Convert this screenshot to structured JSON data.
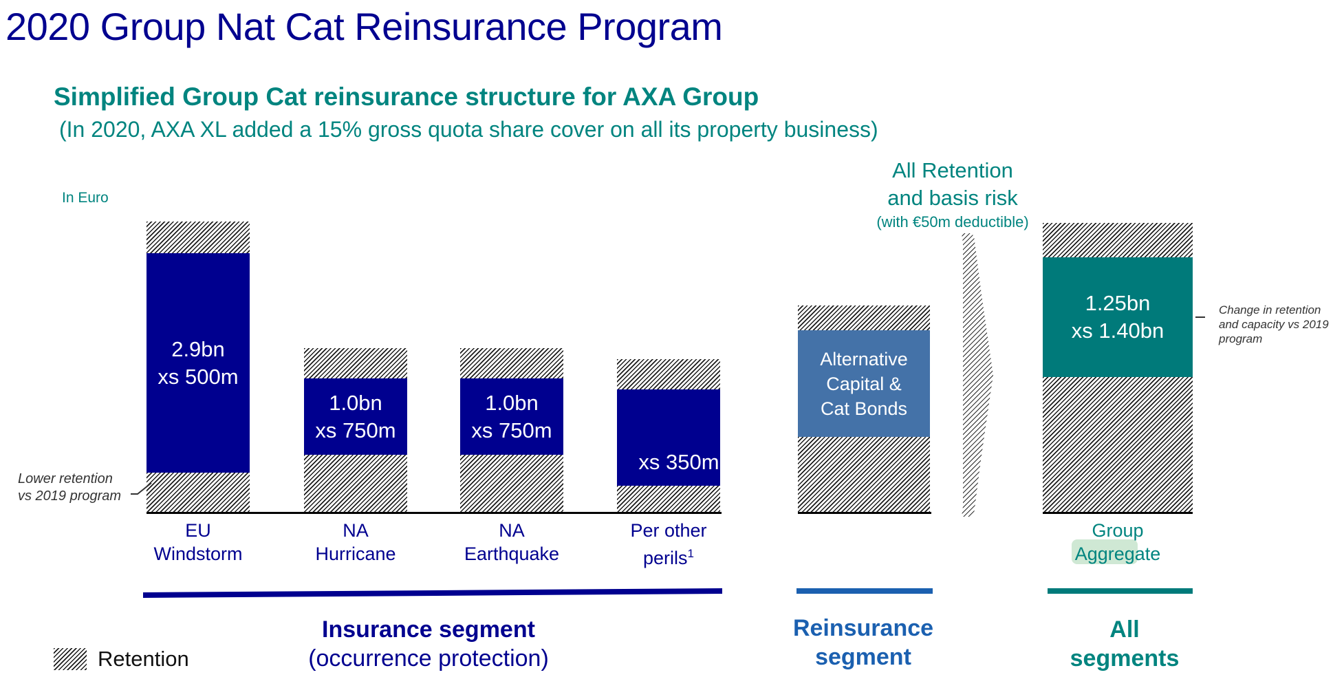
{
  "title": "2020 Group Nat Cat Reinsurance Program",
  "subtitle": "Simplified Group Cat reinsurance structure for AXA Group",
  "subnote": "(In 2020, AXA XL added a 15% gross quota share cover on all its property business)",
  "unit": "In Euro",
  "colors": {
    "insurance": "#00008f",
    "reinsurance": "#4472a8",
    "all_segments": "#007a7a",
    "heading_teal": "#00847f"
  },
  "bars": [
    {
      "id": "eu-windstorm",
      "cover_line1": "2.9bn",
      "cover_line2": "xs 500m",
      "category_line1": "EU",
      "category_line2": "Windstorm"
    },
    {
      "id": "na-hurricane",
      "cover_line1": "1.0bn",
      "cover_line2": "xs 750m",
      "category_line1": "NA",
      "category_line2": "Hurricane"
    },
    {
      "id": "na-earthquake",
      "cover_line1": "1.0bn",
      "cover_line2": "xs 750m",
      "category_line1": "NA",
      "category_line2": "Earthquake"
    },
    {
      "id": "per-other-perils",
      "cover_line1": "",
      "cover_line2": "xs 350m",
      "category_line1": "Per other",
      "category_line2": "perils",
      "footnote": "1"
    }
  ],
  "reinsurance_bar": {
    "line1": "Alternative",
    "line2": "Capital &",
    "line3": "Cat Bonds"
  },
  "aggregate_bar": {
    "cover_line1": "1.25bn",
    "cover_line2": "xs 1.40bn",
    "category_line1": "Group",
    "category_line2": "Aggregate"
  },
  "retention_header": {
    "line1": "All Retention",
    "line2": "and basis risk",
    "line3": "(with €50m deductible)"
  },
  "notes": {
    "lower_retention_line1": "Lower retention",
    "lower_retention_line2": "vs 2019 program",
    "change_line1": "Change in retention",
    "change_line2": "and capacity vs 2019",
    "change_line3": "program"
  },
  "segments": {
    "insurance_title": "Insurance segment",
    "insurance_sub": "(occurrence protection)",
    "reinsurance_title_line1": "Reinsurance",
    "reinsurance_title_line2": "segment",
    "all_title_line1": "All",
    "all_title_line2": "segments"
  },
  "legend": {
    "retention": "Retention"
  }
}
